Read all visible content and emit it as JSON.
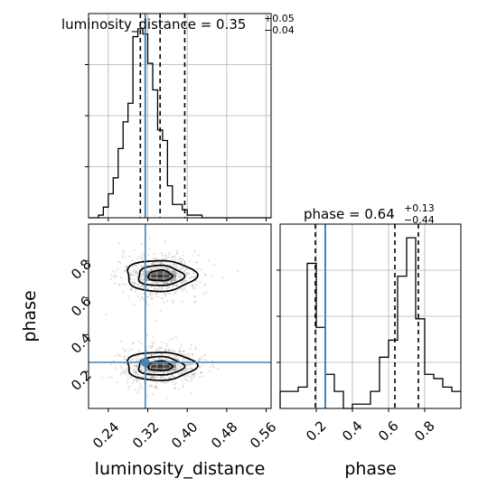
{
  "chart_data": {
    "type": "corner",
    "parameters": [
      "luminosity_distance",
      "phase"
    ],
    "truth": {
      "luminosity_distance": 0.315,
      "phase": 0.25
    },
    "panels": [
      {
        "id": "luminosity_distance-hist",
        "type": "histogram",
        "parameter": "luminosity_distance",
        "title": {
          "prefix": "luminosity_distance = ",
          "value": "0.35",
          "upper": "+0.05",
          "lower": "−0.04"
        },
        "quantiles": [
          0.305,
          0.345,
          0.395
        ],
        "xlim": [
          0.2,
          0.57
        ],
        "xticks": [
          0.24,
          0.32,
          0.4,
          0.48,
          0.56
        ],
        "bins": {
          "start": 0.2,
          "width": 0.01,
          "counts": [
            0,
            0,
            1,
            4,
            9,
            15,
            26,
            36,
            43,
            68,
            71,
            69,
            58,
            48,
            33,
            29,
            12,
            5,
            5,
            3,
            1,
            1,
            1,
            0,
            0,
            0,
            0,
            0,
            0,
            0,
            0,
            0,
            0,
            0,
            0,
            0,
            0
          ]
        }
      },
      {
        "id": "phase-hist",
        "type": "histogram",
        "parameter": "phase",
        "title": {
          "prefix": "phase = ",
          "value": "0.64",
          "upper": "+0.13",
          "lower": "−0.44"
        },
        "quantiles": [
          0.195,
          0.635,
          0.765
        ],
        "xlim": [
          0.0,
          1.0
        ],
        "xticks": [
          0.2,
          0.4,
          0.6,
          0.8
        ],
        "bins": {
          "start": 0.0,
          "width": 0.05,
          "counts": [
            4,
            4,
            5,
            34,
            19,
            8,
            4,
            0,
            1,
            1,
            4,
            12,
            16,
            31,
            40,
            21,
            8,
            7,
            5,
            4
          ]
        }
      },
      {
        "id": "2d-luminosity_distance-phase",
        "type": "2d-density",
        "x": "luminosity_distance",
        "y": "phase",
        "xlabel": "luminosity_distance",
        "ylabel": "phase",
        "xlim": [
          0.2,
          0.57
        ],
        "ylim": [
          0.0,
          1.0
        ],
        "xticks": [
          0.24,
          0.32,
          0.4,
          0.48,
          0.56
        ],
        "yticks": [
          0.2,
          0.4,
          0.6,
          0.8
        ],
        "modes": [
          {
            "center": [
              0.345,
              0.72
            ],
            "spread": [
              0.035,
              0.055
            ],
            "weight": 1.0
          },
          {
            "center": [
              0.345,
              0.23
            ],
            "spread": [
              0.035,
              0.05
            ],
            "weight": 1.0
          }
        ]
      }
    ],
    "colors": {
      "truth": "#4682b4",
      "hist": "#000000",
      "grid": "#b0b0b0",
      "points": "#999999"
    }
  },
  "labels": {
    "luminosity_distance": "luminosity_distance",
    "phase": "phase",
    "xticks_ld": [
      "0.24",
      "0.32",
      "0.40",
      "0.48",
      "0.56"
    ],
    "xticks_phase": [
      "0.2",
      "0.4",
      "0.6",
      "0.8"
    ],
    "yticks_phase": [
      "0.2",
      "0.4",
      "0.6",
      "0.8"
    ]
  }
}
